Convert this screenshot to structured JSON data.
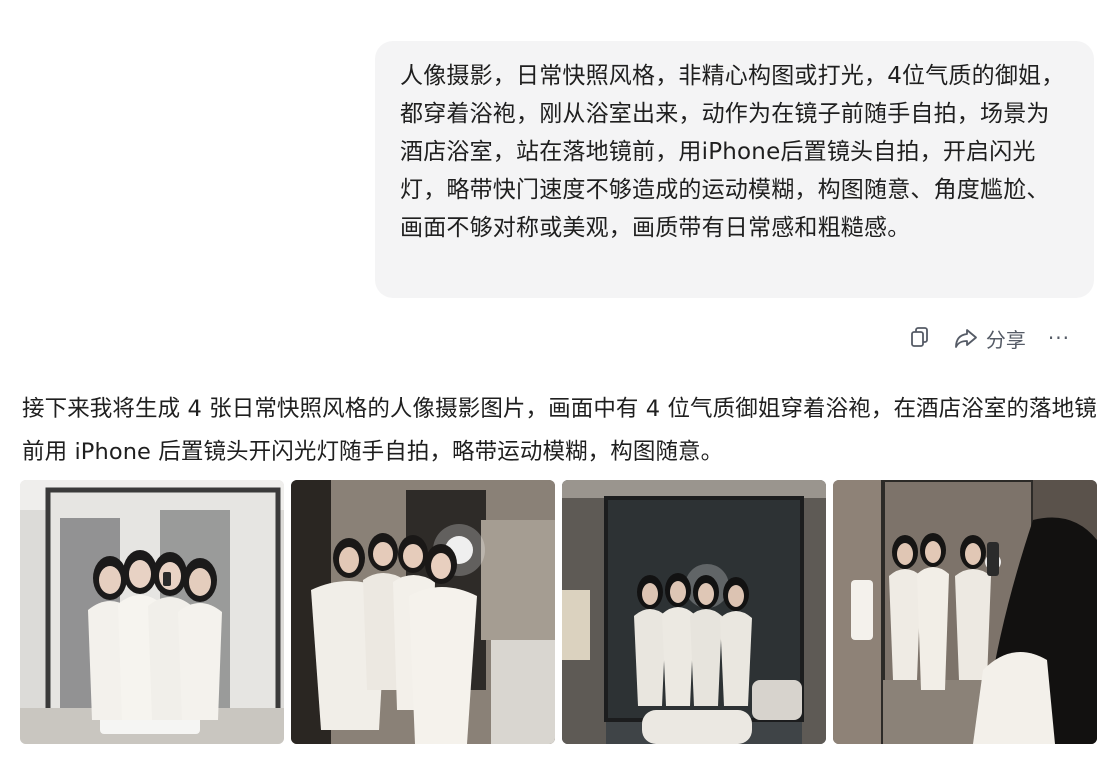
{
  "user_message": {
    "text": "人像摄影，日常快照风格，非精心构图或打光，4位气质的御姐，都穿着浴袍，刚从浴室出来，动作为在镜子前随手自拍，场景为酒店浴室，站在落地镜前，用iPhone后置镜头自拍，开启闪光灯，略带快门速度不够造成的运动模糊，构图随意、角度尴尬、画面不够对称或美观，画质带有日常感和粗糙感。"
  },
  "message_actions": {
    "copy_icon": "copy-icon",
    "share_icon": "share-icon",
    "share_label": "分享",
    "more_label": "···"
  },
  "assistant_reply": {
    "text": "接下来我将生成 4 张日常快照风格的人像摄影图片，画面中有 4 位气质御姐穿着浴袍，在酒店浴室的落地镜前用 iPhone 后置镜头开闪光灯随手自拍，略带运动模糊，构图随意。"
  },
  "generated_images": [
    {
      "name": "generated-image-1",
      "palette": {
        "bg": "#d9d9d6",
        "wall": "#ecebe8",
        "frame": "#3a3a3a",
        "robe": "#f3f1ec",
        "hair": "#1b1a1a",
        "floor": "#c8c5bf"
      }
    },
    {
      "name": "generated-image-2",
      "palette": {
        "bg": "#6d655d",
        "wall": "#8d8479",
        "frame": "#2a2622",
        "robe": "#f1eee8",
        "hair": "#1a1817",
        "floor": "#4d4640"
      }
    },
    {
      "name": "generated-image-3",
      "palette": {
        "bg": "#3f4447",
        "wall": "#5a5f62",
        "frame": "#1c1d1e",
        "robe": "#e9e6df",
        "hair": "#121212",
        "floor": "#8a8680"
      }
    },
    {
      "name": "generated-image-4",
      "palette": {
        "bg": "#6b625a",
        "wall": "#857b71",
        "frame": "#2c2a27",
        "robe": "#efebe4",
        "hair": "#161514",
        "floor": "#5a534c"
      }
    }
  ]
}
